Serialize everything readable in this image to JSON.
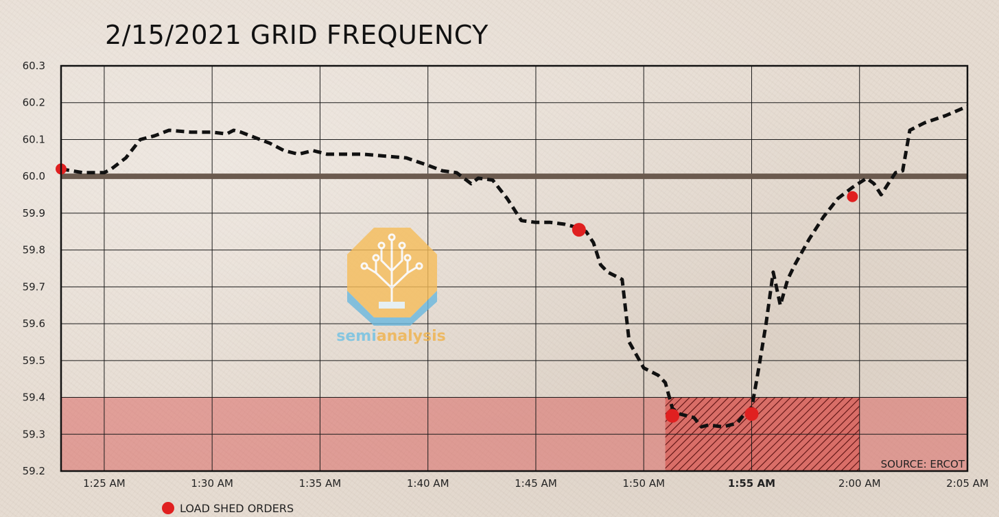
{
  "chart_data": {
    "type": "line",
    "title": "2/15/2021 GRID FREQUENCY",
    "source": "SOURCE: ERCOT",
    "legend": [
      {
        "label": "LOAD SHED ORDERS",
        "color": "#e02020",
        "marker": "circle"
      }
    ],
    "xlim": [
      "1:23 AM",
      "2:05 AM"
    ],
    "ylim": [
      59.2,
      60.3
    ],
    "grid": true,
    "x_ticks": [
      "1:25 AM",
      "1:30 AM",
      "1:35 AM",
      "1:40 AM",
      "1:45 AM",
      "1:50 AM",
      "1:55 AM",
      "2:00 AM",
      "2:05 AM"
    ],
    "x_ticks_bold": [
      "1:55 AM"
    ],
    "y_ticks": [
      "59.2",
      "59.3",
      "59.4",
      "59.5",
      "59.6",
      "59.7",
      "59.8",
      "59.9",
      "60.0",
      "60.1",
      "60.2",
      "60.3"
    ],
    "reference_line": {
      "y": 60.0,
      "color": "#6b5a4e"
    },
    "danger_zone": {
      "y_range": [
        59.2,
        59.4
      ],
      "color": "#d9534f"
    },
    "hatched_region": {
      "x_range": [
        "1:51 AM",
        "2:00 AM"
      ],
      "y_range": [
        59.2,
        59.4
      ],
      "color": "#c0392b"
    },
    "colors": {
      "series": "#111111",
      "marker": "#e02020",
      "axis": "#111111",
      "grid": "#1a1a1a"
    },
    "series": [
      {
        "style": "dashed",
        "time_labels": [
          "1:23:00",
          "1:24:00",
          "1:25:00",
          "1:25:20",
          "1:26:00",
          "1:26:40",
          "1:27:20",
          "1:28:00",
          "1:29:00",
          "1:30:00",
          "1:30:40",
          "1:31:00",
          "1:31:20",
          "1:32:00",
          "1:32:40",
          "1:33:20",
          "1:34:00",
          "1:34:40",
          "1:35:20",
          "1:36:00",
          "1:37:00",
          "1:38:00",
          "1:39:00",
          "1:40:00",
          "1:40:40",
          "1:41:20",
          "1:42:00",
          "1:42:20",
          "1:43:00",
          "1:43:40",
          "1:44:20",
          "1:45:00",
          "1:45:40",
          "1:46:20",
          "1:47:00",
          "1:47:20",
          "1:47:40",
          "1:48:00",
          "1:48:20",
          "1:48:40",
          "1:49:00",
          "1:49:20",
          "1:50:00",
          "1:50:40",
          "1:51:00",
          "1:51:20",
          "1:51:40",
          "1:52:00",
          "1:52:20",
          "1:52:40",
          "1:53:00",
          "1:53:40",
          "1:54:20",
          "1:54:40",
          "1:55:00",
          "1:55:20",
          "1:55:40",
          "1:56:00",
          "1:56:20",
          "1:56:40",
          "1:57:00",
          "1:57:40",
          "1:58:20",
          "1:59:00",
          "1:59:40",
          "2:00:20",
          "2:00:40",
          "2:01:00",
          "2:01:20",
          "2:01:40",
          "2:02:00",
          "2:02:20",
          "2:03:00",
          "2:04:00",
          "2:05:00"
        ],
        "x_minutes": [
          0,
          1,
          2,
          2.33,
          3,
          3.67,
          4.33,
          5,
          6,
          7,
          7.67,
          8,
          8.33,
          9,
          9.67,
          10.33,
          11,
          11.67,
          12.33,
          13,
          14,
          15,
          16,
          17,
          17.67,
          18.33,
          19,
          19.33,
          20,
          20.67,
          21.33,
          22,
          22.67,
          23.33,
          24,
          24.33,
          24.67,
          25,
          25.33,
          25.67,
          26,
          26.33,
          27,
          27.67,
          28,
          28.33,
          28.67,
          29,
          29.33,
          29.67,
          30,
          30.67,
          31.33,
          31.67,
          32,
          32.33,
          32.67,
          33,
          33.33,
          33.67,
          34,
          34.67,
          35.33,
          36,
          36.67,
          37.33,
          37.67,
          38,
          38.33,
          38.67,
          39,
          39.33,
          40,
          41,
          42
        ],
        "y": [
          60.02,
          60.01,
          60.01,
          60.02,
          60.05,
          60.1,
          60.11,
          60.125,
          60.12,
          60.12,
          60.115,
          60.125,
          60.12,
          60.105,
          60.09,
          60.07,
          60.06,
          60.07,
          60.06,
          60.06,
          60.06,
          60.055,
          60.05,
          60.03,
          60.015,
          60.01,
          59.98,
          59.995,
          59.99,
          59.94,
          59.88,
          59.875,
          59.875,
          59.87,
          59.86,
          59.85,
          59.82,
          59.76,
          59.74,
          59.73,
          59.72,
          59.55,
          59.48,
          59.46,
          59.44,
          59.37,
          59.355,
          59.35,
          59.345,
          59.32,
          59.325,
          59.32,
          59.33,
          59.355,
          59.37,
          59.48,
          59.6,
          59.74,
          59.65,
          59.72,
          59.76,
          59.83,
          59.89,
          59.94,
          59.97,
          59.995,
          59.98,
          59.95,
          59.98,
          60.01,
          60.015,
          60.125,
          60.145,
          60.165,
          60.19
        ]
      }
    ],
    "load_shed_orders": [
      {
        "time": "1:23 AM",
        "x_minutes": 0,
        "y": 60.02
      },
      {
        "time": "1:47 AM",
        "x_minutes": 24,
        "y": 59.855
      },
      {
        "time": "1:51 AM",
        "x_minutes": 28.33,
        "y": 59.35
      },
      {
        "time": "1:55 AM",
        "x_minutes": 32,
        "y": 59.355
      },
      {
        "time": "2:00 AM",
        "x_minutes": 36.67,
        "y": 59.945
      }
    ]
  },
  "watermark": {
    "text_part1": "semi",
    "text_part2": "analysis",
    "color_1": "#6ec1e4",
    "color_2": "#f0b24a"
  }
}
